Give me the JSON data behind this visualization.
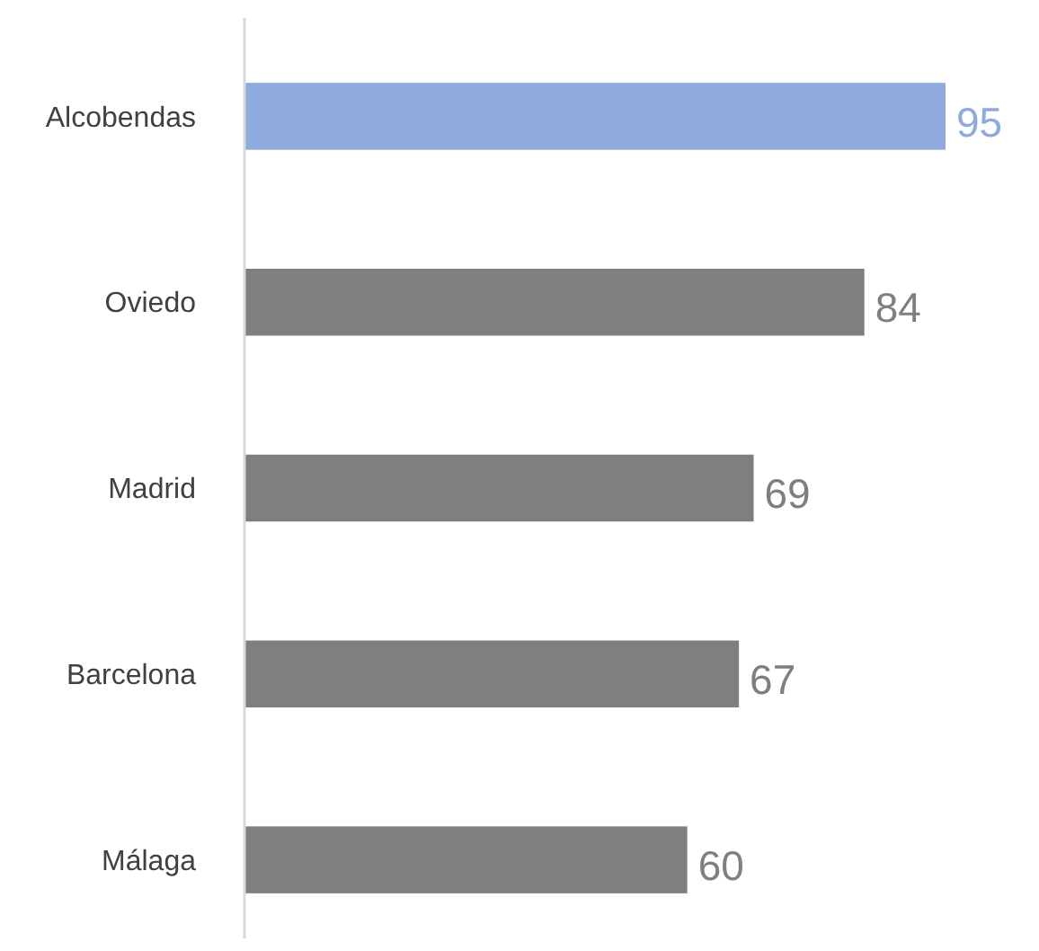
{
  "chart_data": {
    "type": "bar",
    "orientation": "horizontal",
    "categories": [
      "Alcobendas",
      "Oviedo",
      "Madrid",
      "Barcelona",
      "Málaga"
    ],
    "values": [
      95,
      84,
      69,
      67,
      60
    ],
    "colors": [
      "#8faadc",
      "#7f7f7f",
      "#7f7f7f",
      "#7f7f7f",
      "#7f7f7f"
    ],
    "data_labels": true
  }
}
